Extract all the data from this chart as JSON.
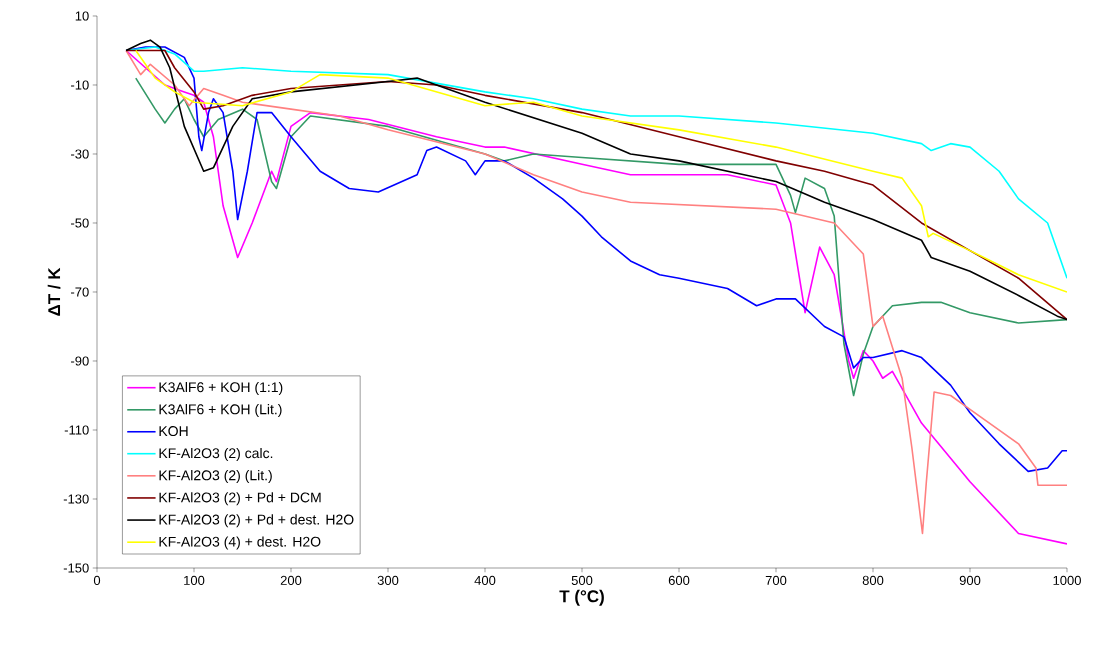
{
  "chart_data": {
    "type": "line",
    "xlabel": "T (°C)",
    "ylabel": "ΔT / K",
    "xlim": [
      0,
      1000
    ],
    "xticks": [
      0,
      100,
      200,
      300,
      400,
      500,
      600,
      700,
      800,
      900,
      1000
    ],
    "ylim": [
      -150,
      10
    ],
    "yticks": [
      -150,
      -130,
      -110,
      -90,
      -70,
      -50,
      -30,
      -10,
      10
    ],
    "grid": false,
    "legend": "bottom left",
    "marker": "none",
    "line_style": "solid",
    "series": [
      {
        "name": "K3AlF6 + KOH (1:1)",
        "color": "#ff00ff",
        "x": [
          30,
          50,
          70,
          90,
          100,
          110,
          120,
          130,
          145,
          160,
          180,
          185,
          200,
          220,
          280,
          350,
          400,
          420,
          500,
          550,
          600,
          650,
          700,
          715,
          730,
          745,
          760,
          775,
          780,
          790,
          800,
          810,
          820,
          850,
          900,
          950,
          1000
        ],
        "values": [
          0,
          -5,
          -10,
          -12,
          -13,
          -15,
          -25,
          -45,
          -60,
          -50,
          -35,
          -38,
          -22,
          -18,
          -20,
          -25,
          -28,
          -28,
          -33,
          -36,
          -36,
          -36,
          -39,
          -50,
          -76,
          -57,
          -65,
          -90,
          -95,
          -87,
          -90,
          -95,
          -93,
          -108,
          -125,
          -140,
          -143
        ]
      },
      {
        "name": "K3AlF6 + KOH (Lit.)",
        "color": "#339966",
        "x": [
          40,
          60,
          70,
          80,
          90,
          100,
          110,
          125,
          150,
          165,
          180,
          185,
          200,
          220,
          300,
          350,
          400,
          420,
          450,
          500,
          600,
          700,
          715,
          720,
          730,
          750,
          760,
          770,
          780,
          790,
          800,
          820,
          850,
          870,
          900,
          950,
          1000
        ],
        "values": [
          -8,
          -17,
          -21,
          -17,
          -14,
          -20,
          -25,
          -20,
          -17,
          -20,
          -38,
          -40,
          -25,
          -19,
          -22,
          -26,
          -30,
          -32,
          -30,
          -31,
          -33,
          -33,
          -42,
          -47,
          -37,
          -40,
          -48,
          -85,
          -100,
          -88,
          -80,
          -74,
          -73,
          -73,
          -76,
          -79,
          -78
        ]
      },
      {
        "name": "KOH",
        "color": "#0000ff",
        "x": [
          30,
          50,
          70,
          90,
          100,
          105,
          108,
          115,
          120,
          130,
          140,
          145,
          155,
          165,
          180,
          200,
          230,
          260,
          290,
          330,
          340,
          350,
          380,
          390,
          400,
          420,
          450,
          480,
          500,
          520,
          550,
          580,
          600,
          650,
          680,
          700,
          720,
          750,
          770,
          780,
          790,
          800,
          830,
          850,
          880,
          900,
          930,
          960,
          980,
          995,
          1000
        ],
        "values": [
          0,
          1,
          1,
          -2,
          -8,
          -25,
          -29,
          -18,
          -14,
          -18,
          -35,
          -49,
          -35,
          -18,
          -18,
          -25,
          -35,
          -40,
          -41,
          -36,
          -29,
          -28,
          -32,
          -36,
          -32,
          -32,
          -37,
          -43,
          -48,
          -54,
          -61,
          -65,
          -66,
          -69,
          -74,
          -72,
          -72,
          -80,
          -83,
          -92,
          -89,
          -89,
          -87,
          -89,
          -97,
          -105,
          -114,
          -122,
          -121,
          -116,
          -116
        ]
      },
      {
        "name": "KF-Al2O3 (2) calc.",
        "color": "#00ffff",
        "x": [
          30,
          60,
          80,
          100,
          110,
          150,
          200,
          300,
          400,
          450,
          500,
          550,
          600,
          700,
          800,
          850,
          860,
          880,
          900,
          930,
          950,
          980,
          1000
        ],
        "values": [
          0,
          1,
          -1,
          -6,
          -6,
          -5,
          -6,
          -7,
          -12,
          -14,
          -17,
          -19,
          -19,
          -21,
          -24,
          -27,
          -29,
          -27,
          -28,
          -35,
          -43,
          -50,
          -66
        ]
      },
      {
        "name": "KF-Al2O3 (2) (Lit.)",
        "color": "#ff8080",
        "x": [
          30,
          45,
          55,
          80,
          95,
          110,
          130,
          150,
          200,
          250,
          300,
          400,
          450,
          500,
          550,
          700,
          760,
          790,
          800,
          810,
          830,
          840,
          851,
          855,
          863,
          880,
          900,
          950,
          968,
          970,
          1000
        ],
        "values": [
          0,
          -7,
          -4,
          -10,
          -16,
          -11,
          -13,
          -15,
          -17,
          -19,
          -23,
          -30,
          -36,
          -41,
          -44,
          -46,
          -50,
          -59,
          -80,
          -77,
          -95,
          -115,
          -140,
          -125,
          -99,
          -100,
          -104,
          -114,
          -121,
          -126,
          -126
        ]
      },
      {
        "name": "KF-Al2O3 (2) + Pd + DCM",
        "color": "#800000",
        "x": [
          30,
          50,
          70,
          80,
          100,
          110,
          130,
          160,
          200,
          300,
          350,
          400,
          500,
          600,
          700,
          750,
          800,
          850,
          900,
          950,
          1000
        ],
        "values": [
          0,
          0,
          0,
          -5,
          -12,
          -17,
          -16,
          -13,
          -11,
          -9,
          -10,
          -13,
          -18,
          -25,
          -32,
          -35,
          -39,
          -50,
          -58,
          -66,
          -78
        ]
      },
      {
        "name": "KF-Al2O3 (2) + Pd + dest. H2O",
        "color": "#000000",
        "x": [
          30,
          45,
          55,
          65,
          75,
          90,
          110,
          120,
          140,
          160,
          200,
          300,
          330,
          350,
          400,
          500,
          550,
          600,
          700,
          750,
          800,
          850,
          860,
          900,
          950,
          990,
          1000
        ],
        "values": [
          0,
          2,
          3,
          1,
          -5,
          -22,
          -35,
          -34,
          -22,
          -14,
          -12,
          -9,
          -8,
          -10,
          -15,
          -24,
          -30,
          -32,
          -38,
          -44,
          -49,
          -55,
          -60,
          -64,
          -71,
          -77,
          -78
        ]
      },
      {
        "name": "KF-Al2O3 (4) + dest. H2O",
        "color": "#ffff00",
        "x": [
          40,
          60,
          80,
          100,
          150,
          200,
          230,
          300,
          350,
          400,
          450,
          500,
          600,
          700,
          800,
          830,
          850,
          857,
          862,
          900,
          950,
          1000
        ],
        "values": [
          0,
          -8,
          -12,
          -15,
          -16,
          -12,
          -7,
          -8,
          -12,
          -16,
          -15,
          -19,
          -23,
          -28,
          -35,
          -37,
          -45,
          -54,
          -53,
          -58,
          -65,
          -70
        ]
      }
    ]
  }
}
